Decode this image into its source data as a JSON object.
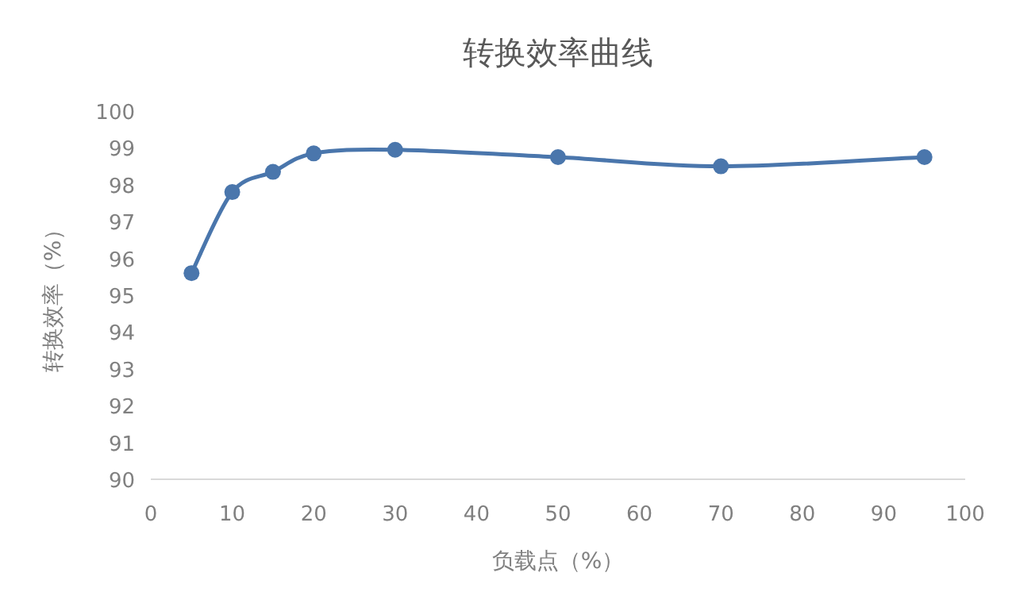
{
  "chart_data": {
    "type": "line",
    "title": "转换效率曲线",
    "xlabel": "负载点（%）",
    "ylabel": "转换效率（%）",
    "x": [
      5,
      10,
      15,
      20,
      30,
      50,
      70,
      95
    ],
    "series": [
      {
        "color": "#4a76ac",
        "values": [
          95.6,
          97.8,
          98.35,
          98.85,
          98.95,
          98.75,
          98.5,
          98.75
        ]
      }
    ],
    "xlim": [
      0,
      100
    ],
    "xticks": [
      0,
      10,
      20,
      30,
      40,
      50,
      60,
      70,
      80,
      90,
      100
    ],
    "ylim": [
      90,
      100
    ],
    "yticks": [
      90,
      91,
      92,
      93,
      94,
      95,
      96,
      97,
      98,
      99,
      100
    ],
    "marker": "circle",
    "line_style": "solid",
    "grid": false
  }
}
